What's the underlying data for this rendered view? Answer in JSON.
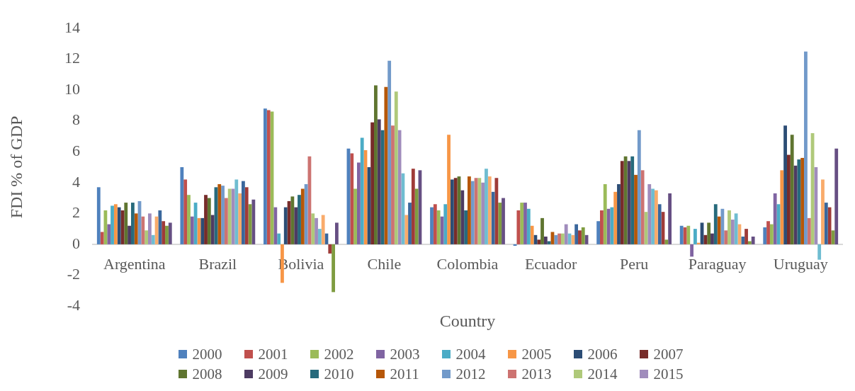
{
  "chart_data": {
    "type": "bar",
    "xlabel": "Country",
    "ylabel": "FDI % of GDP",
    "legend": "bottom",
    "categories": [
      "Argentina",
      "Brazil",
      "Bolivia",
      "Chile",
      "Colombia",
      "Ecuador",
      "Peru",
      "Paraguay",
      "Uruguay"
    ],
    "ylim": [
      -4,
      14
    ],
    "yticks": [
      -4,
      -2,
      0,
      2,
      4,
      6,
      8,
      10,
      12,
      14
    ],
    "series": [
      {
        "name": "2000",
        "color": "#4f81bd",
        "values": [
          3.7,
          5.0,
          8.8,
          6.2,
          2.4,
          -0.1,
          1.5,
          1.2,
          1.1
        ]
      },
      {
        "name": "2001",
        "color": "#c0504d",
        "values": [
          0.8,
          4.2,
          8.7,
          5.9,
          2.6,
          2.2,
          2.2,
          1.1,
          1.5
        ]
      },
      {
        "name": "2002",
        "color": "#9bbb59",
        "values": [
          2.2,
          3.2,
          8.6,
          3.6,
          2.2,
          2.7,
          3.9,
          1.2,
          1.3
        ]
      },
      {
        "name": "2003",
        "color": "#8064a2",
        "values": [
          1.3,
          1.8,
          2.4,
          5.3,
          1.8,
          2.7,
          2.3,
          -0.8,
          3.3
        ]
      },
      {
        "name": "2004",
        "color": "#4bacc6",
        "values": [
          2.5,
          2.7,
          0.7,
          6.9,
          2.6,
          2.3,
          2.4,
          1.0,
          2.6
        ]
      },
      {
        "name": "2005",
        "color": "#f79646",
        "values": [
          2.6,
          1.7,
          -2.5,
          6.1,
          7.1,
          1.2,
          3.4,
          0.1,
          4.8
        ]
      },
      {
        "name": "2006",
        "color": "#2c4d75",
        "values": [
          2.4,
          1.7,
          2.4,
          5.0,
          4.2,
          0.6,
          3.9,
          1.4,
          7.7
        ]
      },
      {
        "name": "2007",
        "color": "#772c2a",
        "values": [
          2.2,
          3.2,
          2.8,
          7.9,
          4.3,
          0.3,
          5.4,
          0.6,
          5.8
        ]
      },
      {
        "name": "2008",
        "color": "#5f7530",
        "values": [
          2.7,
          3.0,
          3.1,
          10.3,
          4.4,
          1.7,
          5.7,
          1.4,
          7.1
        ]
      },
      {
        "name": "2009",
        "color": "#4d3b62",
        "values": [
          1.2,
          1.9,
          2.4,
          8.1,
          3.5,
          0.5,
          5.4,
          0.7,
          5.1
        ]
      },
      {
        "name": "2010",
        "color": "#276a7c",
        "values": [
          2.7,
          3.7,
          3.2,
          7.4,
          2.2,
          0.2,
          5.7,
          2.6,
          5.5
        ]
      },
      {
        "name": "2011",
        "color": "#b65708",
        "values": [
          2.0,
          3.9,
          3.6,
          10.2,
          4.4,
          0.8,
          4.5,
          1.8,
          5.6
        ]
      },
      {
        "name": "2012",
        "color": "#729aca",
        "values": [
          2.8,
          3.8,
          3.9,
          11.9,
          4.1,
          0.6,
          7.4,
          2.3,
          12.5
        ]
      },
      {
        "name": "2013",
        "color": "#cd7371",
        "values": [
          1.8,
          3.0,
          5.7,
          7.7,
          4.3,
          0.7,
          4.8,
          0.9,
          1.7
        ]
      },
      {
        "name": "2014",
        "color": "#afc97a",
        "values": [
          0.9,
          3.6,
          2.0,
          9.9,
          4.3,
          0.7,
          2.1,
          2.2,
          7.2
        ]
      },
      {
        "name": "2015",
        "color": "#a08cbc",
        "values": [
          2.0,
          3.6,
          1.7,
          7.4,
          4.0,
          1.3,
          3.9,
          1.6,
          5.0
        ]
      },
      {
        "color": "#6fbdd1",
        "values": [
          0.6,
          4.2,
          1.0,
          4.6,
          4.9,
          0.7,
          3.6,
          2.0,
          -1.0
        ]
      },
      {
        "color": "#f9ab6b",
        "values": [
          1.8,
          3.3,
          1.9,
          1.9,
          4.4,
          0.6,
          3.5,
          1.3,
          4.2
        ]
      },
      {
        "color": "#3a679c",
        "values": [
          2.2,
          4.1,
          0.7,
          2.7,
          3.4,
          1.3,
          2.6,
          0.5,
          2.7
        ]
      },
      {
        "color": "#9f3b38",
        "values": [
          1.5,
          3.7,
          -0.6,
          4.9,
          4.3,
          0.9,
          2.1,
          1.0,
          2.4
        ]
      },
      {
        "color": "#7f9c40",
        "values": [
          1.2,
          2.6,
          -3.1,
          3.6,
          2.7,
          1.1,
          0.3,
          0.2,
          0.9
        ]
      },
      {
        "color": "#664f83",
        "values": [
          1.4,
          2.9,
          1.4,
          4.8,
          3.0,
          0.6,
          3.3,
          0.5,
          6.2
        ]
      }
    ]
  }
}
